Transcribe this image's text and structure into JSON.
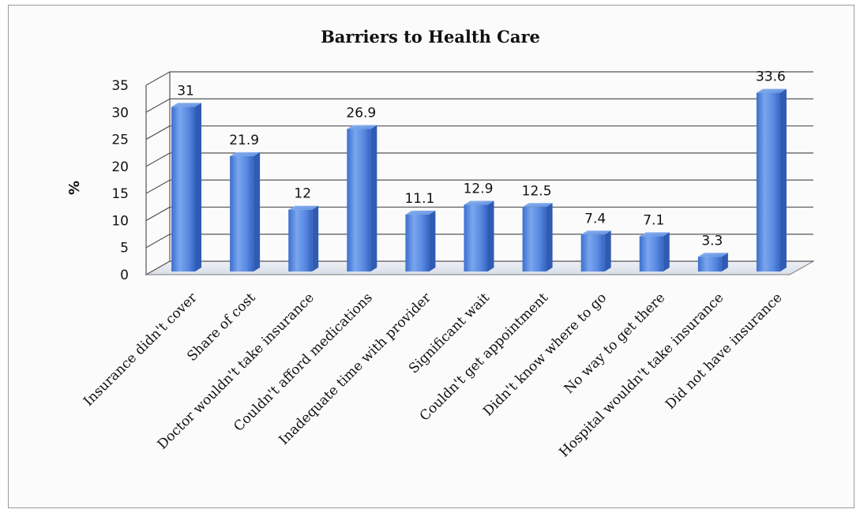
{
  "chart_data": {
    "type": "bar",
    "title": "Barriers to Health Care",
    "xlabel": "",
    "ylabel": "%",
    "ylim": [
      0,
      35
    ],
    "yticks": [
      0,
      5,
      10,
      15,
      20,
      25,
      30,
      35
    ],
    "grid": true,
    "style": "3d-column",
    "bar_color": "#4a7fd8",
    "categories": [
      "Insurance didn't cover",
      "Share of cost",
      "Doctor wouldn't take insurance",
      "Couldn't afford medications",
      "Inadequate time with provider",
      "Significant wait",
      "Couldn't get appointment",
      "Didn't know where to go",
      "No way to get there",
      "Hospital wouldn't take insurance",
      "Did not have insurance"
    ],
    "values": [
      31,
      21.9,
      12,
      26.9,
      11.1,
      12.9,
      12.5,
      7.4,
      7.1,
      3.3,
      33.6
    ],
    "data_labels": [
      "31",
      "21.9",
      "12",
      "26.9",
      "11.1",
      "12.9",
      "12.5",
      "7.4",
      "7.1",
      "3.3",
      "33.6"
    ]
  }
}
